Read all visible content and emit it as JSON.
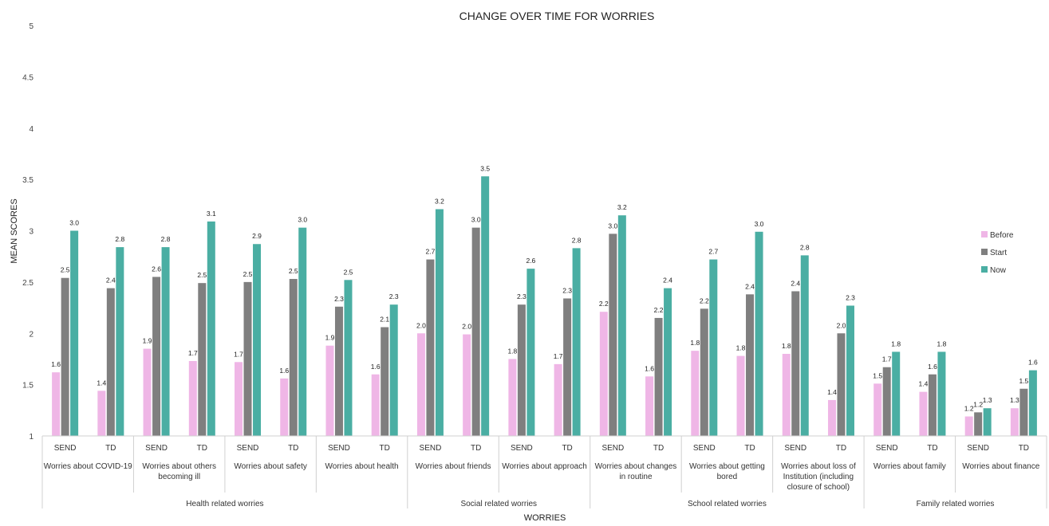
{
  "chart_data": {
    "type": "bar",
    "title": "CHANGE OVER TIME FOR WORRIES",
    "xlabel": "WORRIES",
    "ylabel": "MEAN SCORES",
    "ylim": [
      1,
      5
    ],
    "yticks": [
      "1",
      "1.5",
      "2",
      "2.5",
      "3",
      "3.5",
      "4",
      "4.5",
      "5"
    ],
    "grid": false,
    "legend_position": "right",
    "series": [
      {
        "name": "Before",
        "color": "#efb6e6"
      },
      {
        "name": "Start",
        "color": "#7f7f7f"
      },
      {
        "name": "Now",
        "color": "#4aaea3"
      }
    ],
    "categories": [
      {
        "subject": "Worries about COVID-19",
        "subject_lines": [
          "Worries about COVID-19"
        ],
        "groups": [
          {
            "label": "SEND",
            "values": [
              1.62,
              2.54,
              3.0
            ],
            "labels": [
              "1.6",
              "2.5",
              "3.0"
            ]
          },
          {
            "label": "TD",
            "values": [
              1.44,
              2.44,
              2.84
            ],
            "labels": [
              "1.4",
              "2.4",
              "2.8"
            ]
          }
        ]
      },
      {
        "subject": "Worries about others becoming ill",
        "subject_lines": [
          "Worries about others",
          "becoming ill"
        ],
        "groups": [
          {
            "label": "SEND",
            "values": [
              1.85,
              2.55,
              2.84
            ],
            "labels": [
              "1.9",
              "2.6",
              "2.8"
            ]
          },
          {
            "label": "TD",
            "values": [
              1.73,
              2.49,
              3.09
            ],
            "labels": [
              "1.7",
              "2.5",
              "3.1"
            ]
          }
        ]
      },
      {
        "subject": "Worries about safety",
        "subject_lines": [
          "Worries about safety"
        ],
        "groups": [
          {
            "label": "SEND",
            "values": [
              1.72,
              2.5,
              2.87
            ],
            "labels": [
              "1.7",
              "2.5",
              "2.9"
            ]
          },
          {
            "label": "TD",
            "values": [
              1.56,
              2.53,
              3.03
            ],
            "labels": [
              "1.6",
              "2.5",
              "3.0"
            ]
          }
        ]
      },
      {
        "subject": "Worries about health",
        "subject_lines": [
          "Worries about health"
        ],
        "groups": [
          {
            "label": "SEND",
            "values": [
              1.88,
              2.26,
              2.52
            ],
            "labels": [
              "1.9",
              "2.3",
              "2.5"
            ]
          },
          {
            "label": "TD",
            "values": [
              1.6,
              2.06,
              2.28
            ],
            "labels": [
              "1.6",
              "2.1",
              "2.3"
            ]
          }
        ]
      },
      {
        "subject": "Worries about friends",
        "subject_lines": [
          "Worries about friends"
        ],
        "groups": [
          {
            "label": "SEND",
            "values": [
              2.0,
              2.72,
              3.21
            ],
            "labels": [
              "2.0",
              "2.7",
              "3.2"
            ]
          },
          {
            "label": "TD",
            "values": [
              1.99,
              3.03,
              3.53
            ],
            "labels": [
              "2.0",
              "3.0",
              "3.5"
            ]
          }
        ]
      },
      {
        "subject": "Worries about approach",
        "subject_lines": [
          "Worries about approach"
        ],
        "groups": [
          {
            "label": "SEND",
            "values": [
              1.75,
              2.28,
              2.63
            ],
            "labels": [
              "1.8",
              "2.3",
              "2.6"
            ]
          },
          {
            "label": "TD",
            "values": [
              1.7,
              2.34,
              2.83
            ],
            "labels": [
              "1.7",
              "2.3",
              "2.8"
            ]
          }
        ]
      },
      {
        "subject": "Worries about changes in routine",
        "subject_lines": [
          "Worries about changes",
          "in routine"
        ],
        "groups": [
          {
            "label": "SEND",
            "values": [
              2.21,
              2.97,
              3.15
            ],
            "labels": [
              "2.2",
              "3.0",
              "3.2"
            ]
          },
          {
            "label": "TD",
            "values": [
              1.58,
              2.15,
              2.44
            ],
            "labels": [
              "1.6",
              "2.2",
              "2.4"
            ]
          }
        ]
      },
      {
        "subject": "Worries about getting bored",
        "subject_lines": [
          "Worries about getting",
          "bored"
        ],
        "groups": [
          {
            "label": "SEND",
            "values": [
              1.83,
              2.24,
              2.72
            ],
            "labels": [
              "1.8",
              "2.2",
              "2.7"
            ]
          },
          {
            "label": "TD",
            "values": [
              1.78,
              2.38,
              2.99
            ],
            "labels": [
              "1.8",
              "2.4",
              "3.0"
            ]
          }
        ]
      },
      {
        "subject": "Worries about loss of Institution (including closure of school)",
        "subject_lines": [
          "Worries about loss of",
          "Institution (including",
          "closure of school)"
        ],
        "groups": [
          {
            "label": "SEND",
            "values": [
              1.8,
              2.41,
              2.76
            ],
            "labels": [
              "1.8",
              "2.4",
              "2.8"
            ]
          },
          {
            "label": "TD",
            "values": [
              1.35,
              2.0,
              2.27
            ],
            "labels": [
              "1.4",
              "2.0",
              "2.3"
            ]
          }
        ]
      },
      {
        "subject": "Worries about family",
        "subject_lines": [
          "Worries about family"
        ],
        "groups": [
          {
            "label": "SEND",
            "values": [
              1.51,
              1.67,
              1.82
            ],
            "labels": [
              "1.5",
              "1.7",
              "1.8"
            ]
          },
          {
            "label": "TD",
            "values": [
              1.43,
              1.6,
              1.82
            ],
            "labels": [
              "1.4",
              "1.6",
              "1.8"
            ]
          }
        ]
      },
      {
        "subject": "Worries about finance",
        "subject_lines": [
          "Worries about finance"
        ],
        "groups": [
          {
            "label": "SEND",
            "values": [
              1.19,
              1.23,
              1.27
            ],
            "labels": [
              "1.2",
              "1.2",
              "1.3"
            ]
          },
          {
            "label": "TD",
            "values": [
              1.27,
              1.46,
              1.64
            ],
            "labels": [
              "1.3",
              "1.5",
              "1.6"
            ]
          }
        ]
      }
    ],
    "category_groups": [
      {
        "label": "Health related worries",
        "from": 0,
        "to": 3
      },
      {
        "label": "Social related worries",
        "from": 4,
        "to": 5
      },
      {
        "label": "School related worries",
        "from": 6,
        "to": 8
      },
      {
        "label": "Family related worries",
        "from": 9,
        "to": 10
      }
    ]
  }
}
